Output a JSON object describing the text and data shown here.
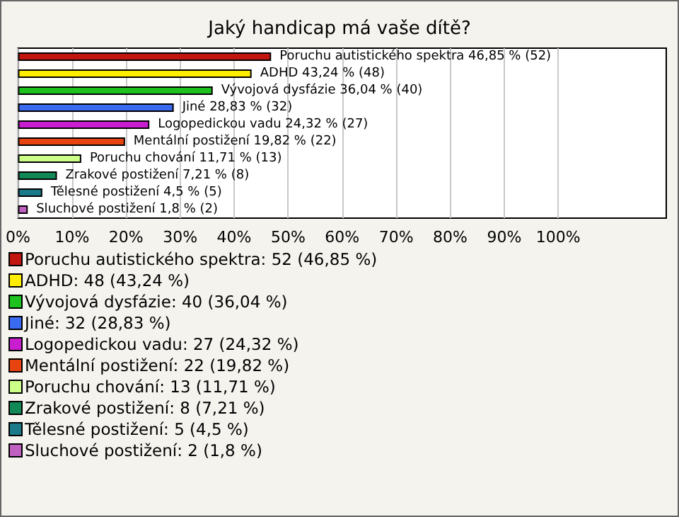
{
  "chart_data": {
    "type": "bar",
    "orientation": "horizontal",
    "stacked": true,
    "title": "Jaký handicap má vaše dítě?",
    "categories": [
      null,
      null,
      null,
      null,
      null,
      null,
      null,
      null,
      null,
      null
    ],
    "xlim": [
      0,
      120
    ],
    "xticks": [
      {
        "value": 0,
        "label": "0%"
      },
      {
        "value": 10,
        "label": "10%"
      },
      {
        "value": 20,
        "label": "20%"
      },
      {
        "value": 30,
        "label": "30%"
      },
      {
        "value": 40,
        "label": "40%"
      },
      {
        "value": 50,
        "label": "50%"
      },
      {
        "value": 60,
        "label": "60%"
      },
      {
        "value": 70,
        "label": "70%"
      },
      {
        "value": 80,
        "label": "80%"
      },
      {
        "value": 90,
        "label": "90%"
      },
      {
        "value": 100,
        "label": "100%"
      }
    ],
    "grid": "x",
    "legend": "bottom",
    "tick_labels": "x",
    "series": [
      {
        "name": "Poruchu autistického spektra: 52 (46,85 %)",
        "color": "#c0160f",
        "values": [
          46.85,
          null,
          null,
          null,
          null,
          null,
          null,
          null,
          null,
          null
        ],
        "value_labels": [
          "Poruchu autistického spektra 46,85 % (52)",
          null,
          null,
          null,
          null,
          null,
          null,
          null,
          null,
          null
        ]
      },
      {
        "name": "ADHD: 48 (43,24 %)",
        "color": "#ffee00",
        "values": [
          null,
          43.24,
          null,
          null,
          null,
          null,
          null,
          null,
          null,
          null
        ],
        "value_labels": [
          null,
          "ADHD 43,24 % (48)",
          null,
          null,
          null,
          null,
          null,
          null,
          null,
          null
        ]
      },
      {
        "name": "Vývojová dysfázie: 40 (36,04 %)",
        "color": "#1ec21e",
        "values": [
          null,
          null,
          36.04,
          null,
          null,
          null,
          null,
          null,
          null,
          null
        ],
        "value_labels": [
          null,
          null,
          "Vývojová dysfázie 36,04 % (40)",
          null,
          null,
          null,
          null,
          null,
          null,
          null
        ]
      },
      {
        "name": "Jiné: 32 (28,83 %)",
        "color": "#3a6af0",
        "values": [
          null,
          null,
          null,
          28.83,
          null,
          null,
          null,
          null,
          null,
          null
        ],
        "value_labels": [
          null,
          null,
          null,
          "Jiné 28,83 % (32)",
          null,
          null,
          null,
          null,
          null,
          null
        ]
      },
      {
        "name": "Logopedickou vadu: 27 (24,32 %)",
        "color": "#c81ed0",
        "values": [
          null,
          null,
          null,
          null,
          24.32,
          null,
          null,
          null,
          null,
          null
        ],
        "value_labels": [
          null,
          null,
          null,
          null,
          "Logopedickou vadu 24,32 % (27)",
          null,
          null,
          null,
          null,
          null
        ]
      },
      {
        "name": "Mentální postižení: 22 (19,82 %)",
        "color": "#e84410",
        "values": [
          null,
          null,
          null,
          null,
          null,
          19.82,
          null,
          null,
          null,
          null
        ],
        "value_labels": [
          null,
          null,
          null,
          null,
          null,
          "Mentální postižení 19,82 % (22)",
          null,
          null,
          null,
          null
        ]
      },
      {
        "name": "Poruchu chování: 13 (11,71 %)",
        "color": "#ccff88",
        "values": [
          null,
          null,
          null,
          null,
          null,
          null,
          11.71,
          null,
          null,
          null
        ],
        "value_labels": [
          null,
          null,
          null,
          null,
          null,
          null,
          "Poruchu chování 11,71 % (13)",
          null,
          null,
          null
        ]
      },
      {
        "name": "Zrakové postižení: 8 (7,21 %)",
        "color": "#118855",
        "values": [
          null,
          null,
          null,
          null,
          null,
          null,
          null,
          7.21,
          null,
          null
        ],
        "value_labels": [
          null,
          null,
          null,
          null,
          null,
          null,
          null,
          "Zrakové postižení 7,21 % (8)",
          null,
          null
        ]
      },
      {
        "name": "Tělesné postižení: 5 (4,5 %)",
        "color": "#1a7a8a",
        "values": [
          null,
          null,
          null,
          null,
          null,
          null,
          null,
          null,
          4.5,
          null
        ],
        "value_labels": [
          null,
          null,
          null,
          null,
          null,
          null,
          null,
          null,
          "Tělesné postižení 4,5 % (5)",
          null
        ]
      },
      {
        "name": "Sluchové postižení: 2 (1,8 %)",
        "color": "#c060c0",
        "values": [
          null,
          null,
          null,
          null,
          null,
          null,
          null,
          null,
          null,
          1.8
        ],
        "value_labels": [
          null,
          null,
          null,
          null,
          null,
          null,
          null,
          null,
          null,
          "Sluchové postižení 1,8 % (2)"
        ]
      }
    ]
  }
}
